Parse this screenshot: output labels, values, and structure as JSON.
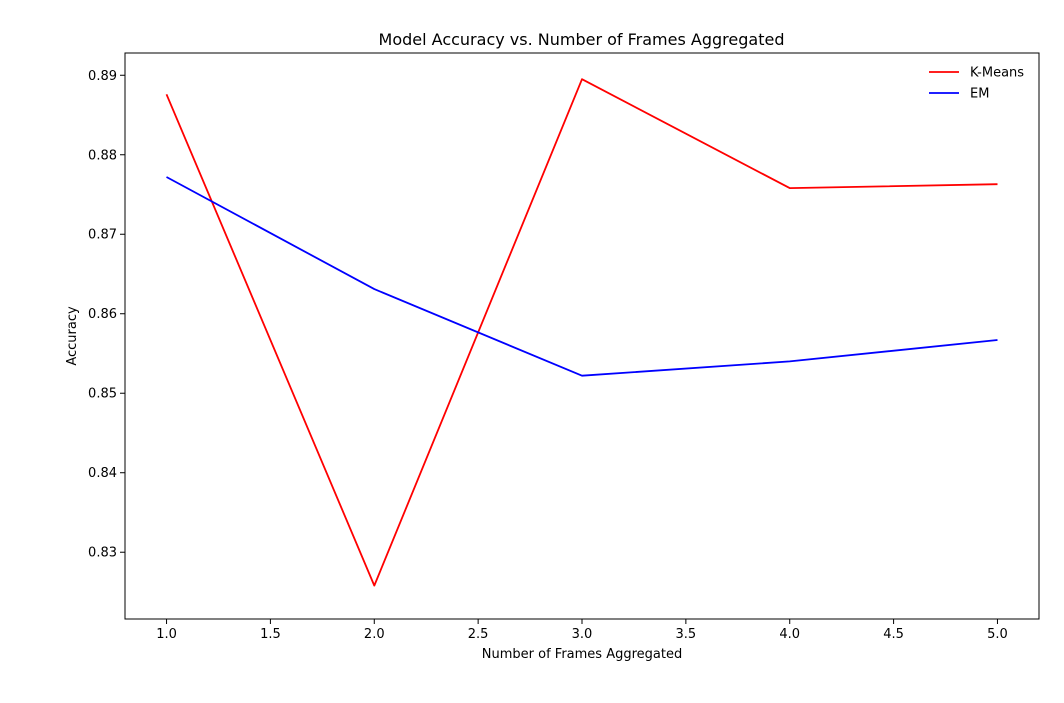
{
  "chart_data": {
    "type": "line",
    "title": "Model Accuracy vs. Number of Frames Aggregated",
    "xlabel": "Number of Frames Aggregated",
    "ylabel": "Accuracy",
    "x": [
      1.0,
      2.0,
      3.0,
      4.0,
      5.0
    ],
    "xlim": [
      0.8,
      5.2
    ],
    "ylim": [
      0.8216,
      0.8928
    ],
    "xticks": [
      1.0,
      1.5,
      2.0,
      2.5,
      3.0,
      3.5,
      4.0,
      4.5,
      5.0
    ],
    "xtick_labels": [
      "1.0",
      "1.5",
      "2.0",
      "2.5",
      "3.0",
      "3.5",
      "4.0",
      "4.5",
      "5.0"
    ],
    "yticks": [
      0.83,
      0.84,
      0.85,
      0.86,
      0.87,
      0.88,
      0.89
    ],
    "ytick_labels": [
      "0.83",
      "0.84",
      "0.85",
      "0.86",
      "0.87",
      "0.88",
      "0.89"
    ],
    "grid": false,
    "legend_position": "top-right",
    "series": [
      {
        "name": "K-Means",
        "color": "#ff0000",
        "values": [
          0.8876,
          0.8258,
          0.8895,
          0.8758,
          0.8763
        ]
      },
      {
        "name": "EM",
        "color": "#0000ff",
        "values": [
          0.8772,
          0.8631,
          0.8522,
          0.854,
          0.8567
        ]
      }
    ]
  }
}
